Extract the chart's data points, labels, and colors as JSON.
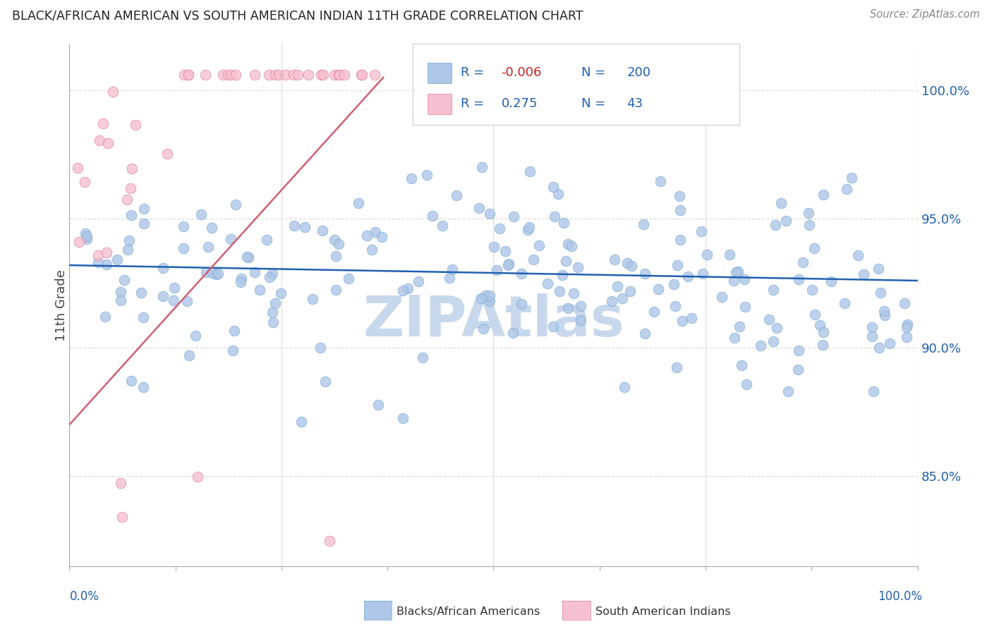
{
  "title": "BLACK/AFRICAN AMERICAN VS SOUTH AMERICAN INDIAN 11TH GRADE CORRELATION CHART",
  "source": "Source: ZipAtlas.com",
  "ylabel": "11th Grade",
  "blue_R": "-0.006",
  "blue_N": "200",
  "pink_R": "0.275",
  "pink_N": "43",
  "blue_color": "#aec6e8",
  "blue_edge": "#7aaad0",
  "pink_color": "#f5c0cf",
  "pink_edge": "#e0809a",
  "trendline_blue_color": "#2060b0",
  "trendline_pink_color": "#d06070",
  "text_blue_color": "#2060b0",
  "neg_R_color": "#cc2020",
  "title_color": "#222222",
  "watermark_color": "#c8d8ec",
  "grid_color": "#dddddd",
  "grid_style": "--",
  "ytick_labels": [
    "85.0%",
    "90.0%",
    "95.0%",
    "100.0%"
  ],
  "ytick_values": [
    0.85,
    0.9,
    0.95,
    1.0
  ],
  "xmin": 0.0,
  "xmax": 1.0,
  "ymin": 0.815,
  "ymax": 1.018
}
